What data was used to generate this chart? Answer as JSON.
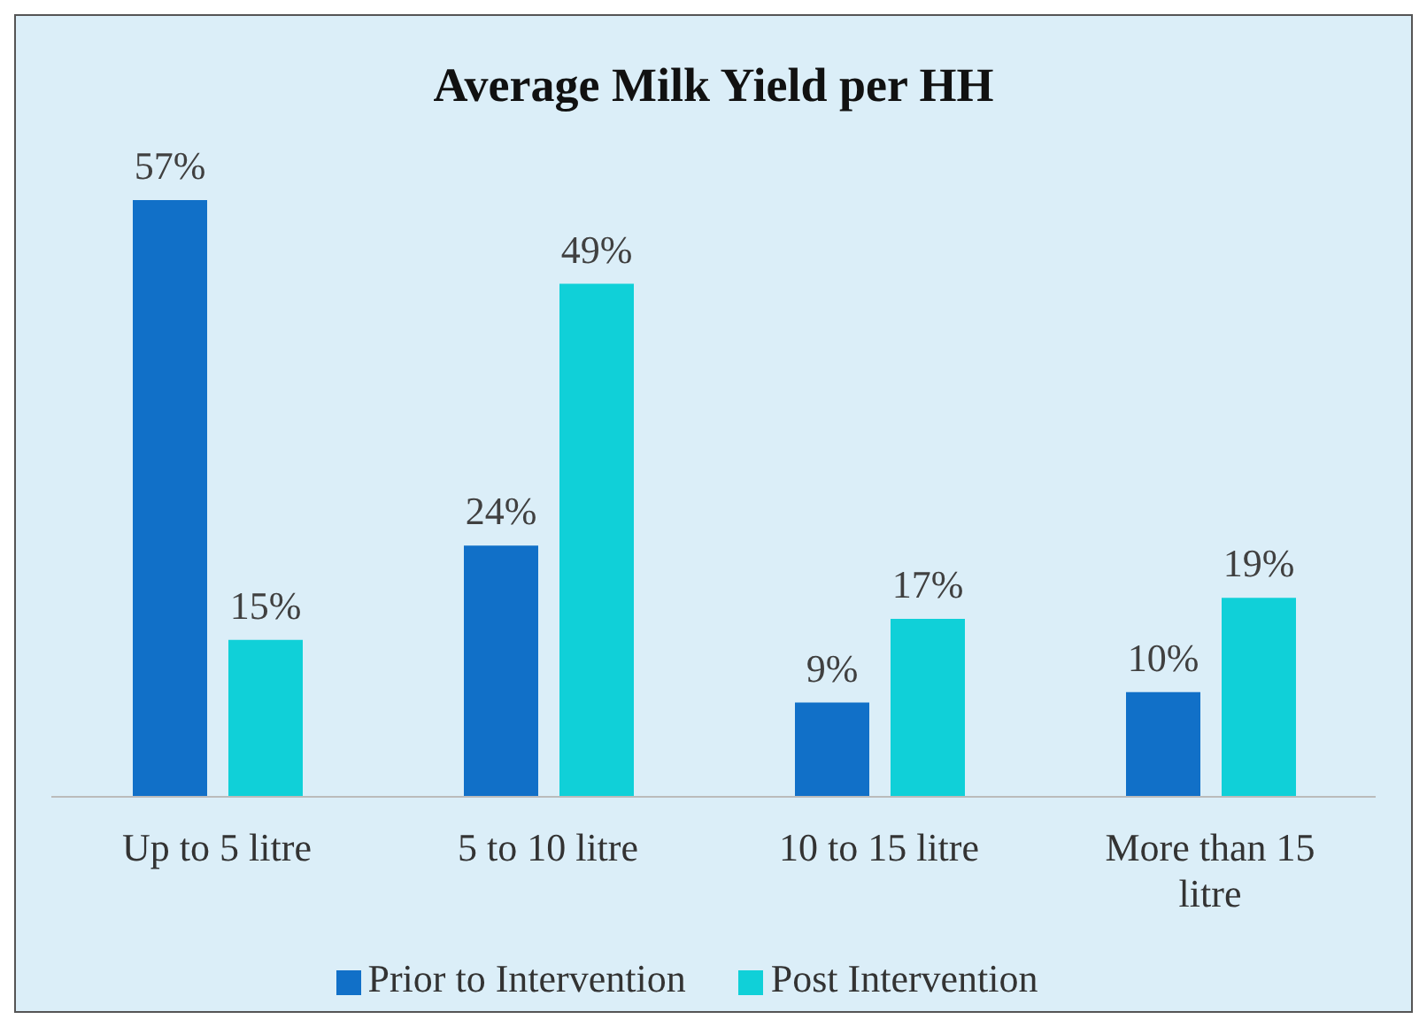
{
  "chart_data": {
    "type": "bar",
    "title": "Average Milk Yield per HH",
    "categories": [
      "Up to 5 litre",
      "5 to 10 litre",
      "10 to 15 litre",
      "More than 15 litre"
    ],
    "series": [
      {
        "name": "Prior to Intervention",
        "color": "#1170c8",
        "values": [
          57,
          24,
          9,
          10
        ],
        "value_labels": [
          "57%",
          "24%",
          "9%",
          "10%"
        ]
      },
      {
        "name": "Post Intervention",
        "color": "#10d0d8",
        "values": [
          15,
          49,
          17,
          19
        ],
        "value_labels": [
          "15%",
          "49%",
          "17%",
          "19%"
        ]
      }
    ],
    "grid": false,
    "legend": "bottom"
  }
}
